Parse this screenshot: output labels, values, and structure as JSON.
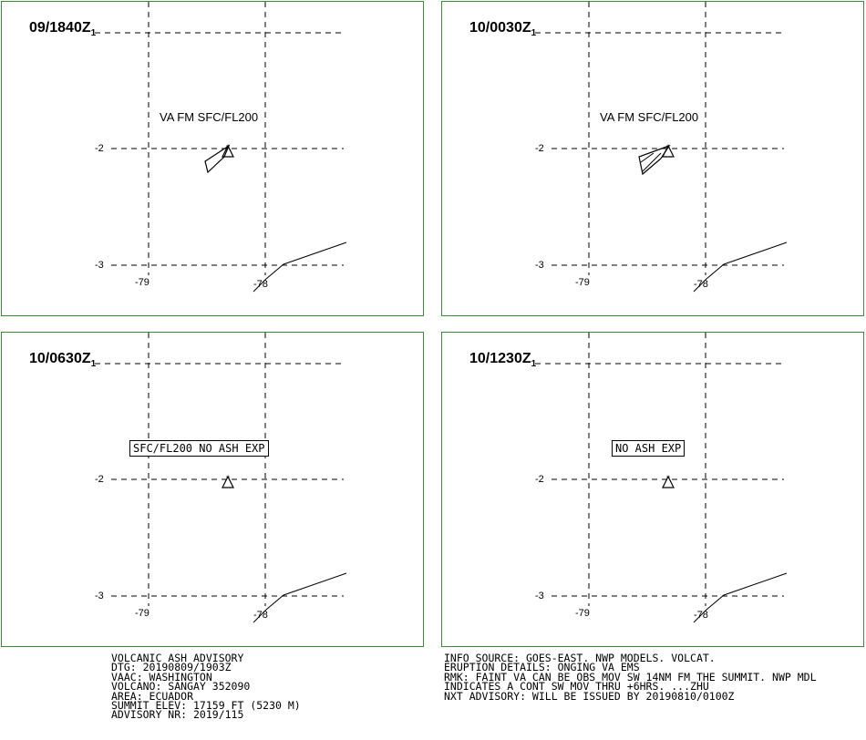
{
  "panels": [
    {
      "time": "09/1840Z",
      "sub": "1",
      "lat_ticks": [
        "-2",
        "-3"
      ],
      "lon_ticks": [
        "-79",
        "-78"
      ],
      "va_text": "VA FM SFC/FL200",
      "boxed": false
    },
    {
      "time": "10/0030Z",
      "sub": "1",
      "lat_ticks": [
        "-2",
        "-3"
      ],
      "lon_ticks": [
        "-79",
        "-78"
      ],
      "va_text": "VA FM SFC/FL200",
      "boxed": false
    },
    {
      "time": "10/0630Z",
      "sub": "1",
      "lat_ticks": [
        "-2",
        "-3"
      ],
      "lon_ticks": [
        "-79",
        "-78"
      ],
      "va_text": "SFC/FL200 NO ASH EXP",
      "boxed": true
    },
    {
      "time": "10/1230Z",
      "sub": "1",
      "lat_ticks": [
        "-2",
        "-3"
      ],
      "lon_ticks": [
        "-79",
        "-78"
      ],
      "va_text": "NO ASH EXP",
      "boxed": true
    }
  ],
  "footer_left": [
    "VOLCANIC ASH ADVISORY",
    "DTG: 20190809/1903Z",
    "VAAC: WASHINGTON",
    "VOLCANO: SANGAY 352090",
    "AREA: ECUADOR",
    "SUMMIT ELEV: 17159 FT (5230 M)",
    "ADVISORY NR: 2019/115"
  ],
  "footer_right": [
    "INFO SOURCE: GOES-EAST. NWP MODELS. VOLCAT.",
    "ERUPTION DETAILS: ONGING VA EMS",
    "RMK: FAINT VA CAN BE OBS MOV SW 14NM FM THE SUMMIT. NWP MDL",
    "INDICATES A CONT SW MOV THRU +6HRS. ...ZHU",
    "NXT ADVISORY: WILL BE ISSUED BY 20190810/0100Z"
  ],
  "colors": {
    "panel_border": "#3a8a3a",
    "grid": "#000000"
  }
}
